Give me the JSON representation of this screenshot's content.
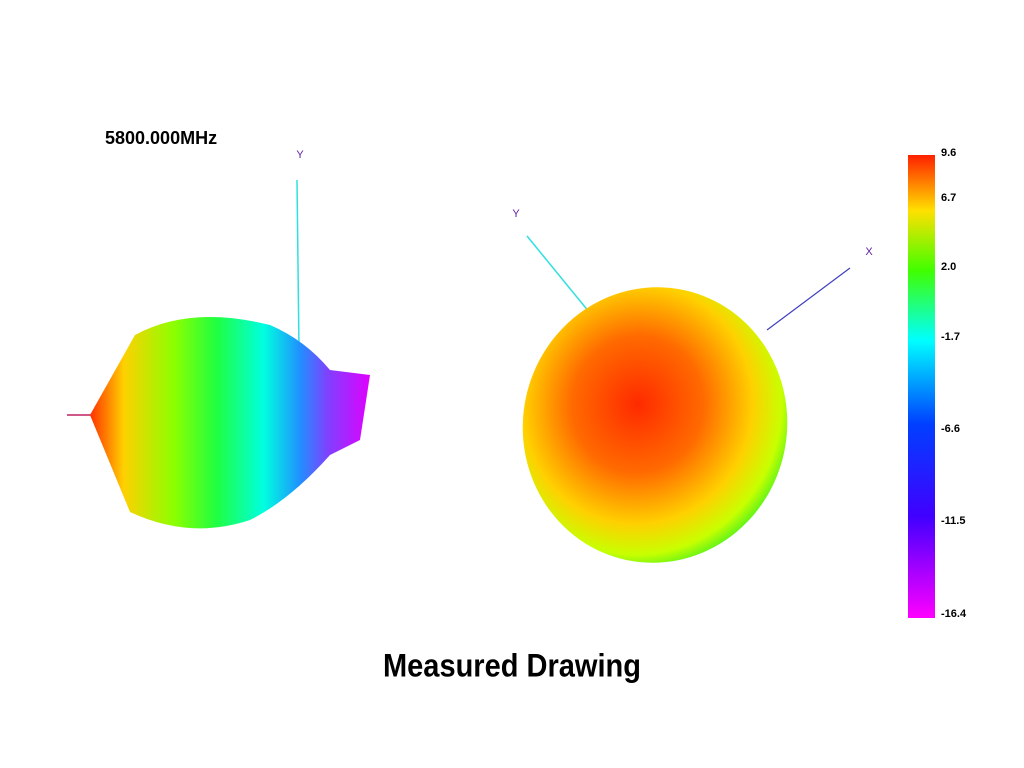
{
  "header": {
    "frequency": "5800.000MHz"
  },
  "left_view": {
    "axis_y": "Y"
  },
  "right_view": {
    "axis_y": "Y",
    "axis_x": "X"
  },
  "colorbar": {
    "labels": [
      "9.6",
      "6.7",
      "2.0",
      "-1.7",
      "-6.6",
      "-11.5",
      "-16.4"
    ]
  },
  "caption": "Measured Drawing"
}
